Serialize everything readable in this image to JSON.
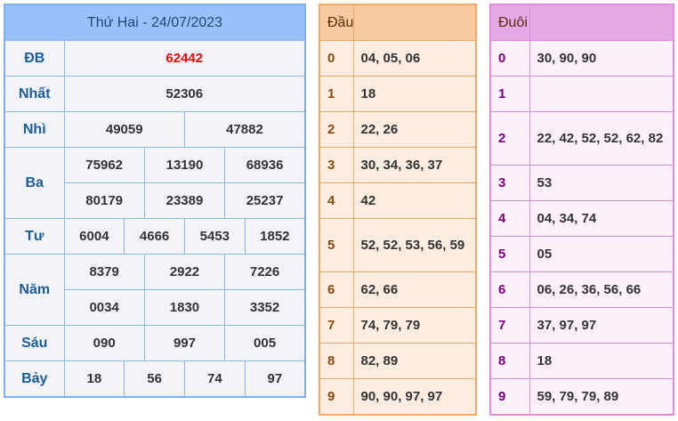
{
  "results": {
    "title": "Thứ Hai - 24/07/2023",
    "rows": [
      {
        "label": "ĐB",
        "values": [
          "62442"
        ]
      },
      {
        "label": "Nhất",
        "values": [
          "52306"
        ]
      },
      {
        "label": "Nhì",
        "values": [
          "49059",
          "47882"
        ]
      },
      {
        "label": "Ba",
        "values": [
          "75962",
          "13190",
          "68936",
          "80179",
          "23389",
          "25237"
        ]
      },
      {
        "label": "Tư",
        "values": [
          "6004",
          "4666",
          "5453",
          "1852"
        ]
      },
      {
        "label": "Năm",
        "values": [
          "8379",
          "2922",
          "7226",
          "0034",
          "1830",
          "3352"
        ]
      },
      {
        "label": "Sáu",
        "values": [
          "090",
          "997",
          "005"
        ]
      },
      {
        "label": "Bảy",
        "values": [
          "18",
          "56",
          "74",
          "97"
        ]
      }
    ],
    "special_color": "#ff0000"
  },
  "dau": {
    "header": "Đầu",
    "rows": [
      {
        "k": "0",
        "v": "04, 05, 06"
      },
      {
        "k": "1",
        "v": "18"
      },
      {
        "k": "2",
        "v": "22, 26"
      },
      {
        "k": "3",
        "v": "30, 34, 36, 37"
      },
      {
        "k": "4",
        "v": "42"
      },
      {
        "k": "5",
        "v": "52, 52, 53, 56, 59"
      },
      {
        "k": "6",
        "v": "62, 66"
      },
      {
        "k": "7",
        "v": "74, 79, 79"
      },
      {
        "k": "8",
        "v": "82, 89"
      },
      {
        "k": "9",
        "v": "90, 90, 97, 97"
      }
    ]
  },
  "duoi": {
    "header": "Đuôi",
    "rows": [
      {
        "k": "0",
        "v": "30, 90, 90"
      },
      {
        "k": "1",
        "v": ""
      },
      {
        "k": "2",
        "v": "22, 42, 52, 52, 62, 82"
      },
      {
        "k": "3",
        "v": "53"
      },
      {
        "k": "4",
        "v": "04, 34, 74"
      },
      {
        "k": "5",
        "v": "05"
      },
      {
        "k": "6",
        "v": "06, 26, 36, 56, 66"
      },
      {
        "k": "7",
        "v": "37, 97, 97"
      },
      {
        "k": "8",
        "v": "18"
      },
      {
        "k": "9",
        "v": "59, 79, 79, 89"
      }
    ]
  }
}
